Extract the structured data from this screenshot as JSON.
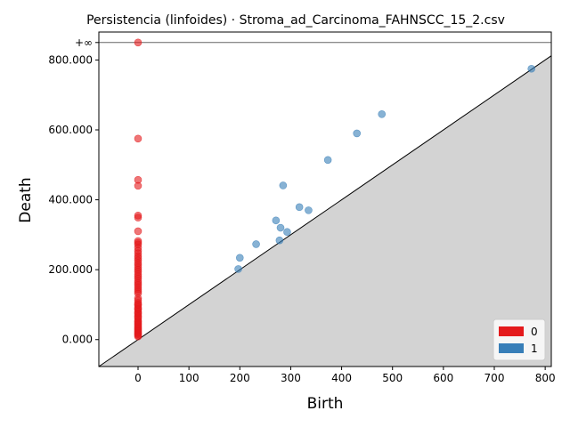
{
  "chart_data": {
    "type": "scatter",
    "title": "Persistencia (linfoides) · Stroma_ad_Carcinoma_FAHNSCC_15_2.csv",
    "xlabel": "Birth",
    "ylabel": "Death",
    "xlim": [
      -77,
      812
    ],
    "ylim": [
      -77,
      880
    ],
    "x_ticks": [
      0,
      100,
      200,
      300,
      400,
      500,
      600,
      700,
      800
    ],
    "x_tick_labels": [
      "0",
      "100",
      "200",
      "300",
      "400",
      "500",
      "600",
      "700",
      "800"
    ],
    "y_ticks": [
      0,
      200,
      400,
      600,
      800
    ],
    "y_tick_labels": [
      "0.000",
      "200.000",
      "400.000",
      "600.000",
      "800.000"
    ],
    "infinity_value": 850,
    "infinity_label": "+∞",
    "diagonal": true,
    "grid": false,
    "legend_position": "bottom-right",
    "series": [
      {
        "name": "0",
        "color": "#e41a1c",
        "x": [
          0,
          0,
          0,
          0,
          0,
          0,
          0,
          0,
          0,
          0,
          0,
          0,
          0,
          0,
          0,
          0,
          0,
          0,
          0,
          0,
          0,
          0,
          0,
          0,
          0,
          0,
          0,
          0,
          0,
          0,
          0,
          0,
          0,
          0,
          0,
          0,
          0,
          0,
          0,
          0,
          0,
          0,
          0,
          0,
          0,
          0,
          0,
          0,
          0,
          0,
          0,
          0,
          0,
          0,
          0,
          0,
          0,
          0,
          0,
          0,
          0
        ],
        "y": [
          850,
          575,
          457,
          440,
          355,
          349,
          310,
          282,
          277,
          272,
          263,
          254,
          247,
          239,
          233,
          226,
          219,
          213,
          206,
          200,
          194,
          187,
          181,
          175,
          168,
          162,
          156,
          150,
          144,
          138,
          132,
          118,
          112,
          105,
          99,
          92,
          86,
          80,
          73,
          67,
          60,
          54,
          48,
          42,
          35,
          29,
          23,
          17,
          12,
          9,
          15,
          20,
          26,
          32,
          38,
          44,
          52,
          64,
          76,
          88,
          100
        ]
      },
      {
        "name": "1",
        "color": "#377eb8",
        "x": [
          773,
          479,
          430,
          373,
          285,
          317,
          335,
          271,
          280,
          293,
          232,
          278,
          200,
          197
        ],
        "y": [
          775,
          645,
          590,
          514,
          441,
          379,
          370,
          341,
          320,
          308,
          273,
          284,
          234,
          202
        ]
      }
    ]
  }
}
